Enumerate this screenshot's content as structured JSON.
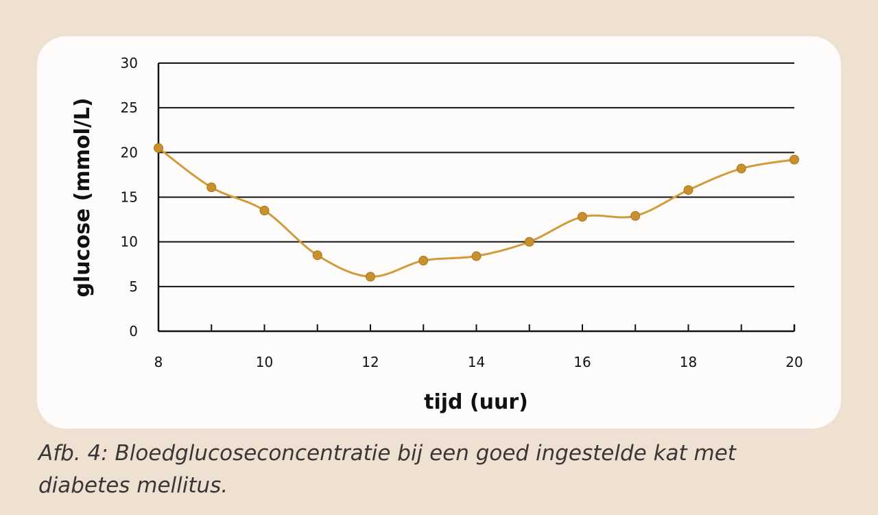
{
  "chart_data": {
    "type": "line",
    "title": "",
    "xlabel": "tijd (uur)",
    "ylabel": "glucose (mmol/L)",
    "xlim": [
      8,
      20
    ],
    "ylim": [
      0,
      30
    ],
    "x_ticks": [
      8,
      10,
      12,
      14,
      16,
      18,
      20
    ],
    "y_ticks": [
      0,
      5,
      10,
      15,
      20,
      25,
      30
    ],
    "grid": "horizontal",
    "legend": "none",
    "line_color": "#d19a3a",
    "marker_color": "#c9902e",
    "series": [
      {
        "x": [
          8,
          9,
          10,
          11,
          12,
          13,
          14,
          15,
          16,
          17,
          18,
          19,
          20
        ],
        "values": [
          20.5,
          16.1,
          13.5,
          8.5,
          6.1,
          7.9,
          8.4,
          10.0,
          12.8,
          12.9,
          15.8,
          18.2,
          19.2
        ]
      }
    ]
  },
  "caption": {
    "line1": "Afb. 4: Bloedglucoseconcentratie bij een goed ingestelde kat met",
    "line2": "diabetes mellitus."
  }
}
